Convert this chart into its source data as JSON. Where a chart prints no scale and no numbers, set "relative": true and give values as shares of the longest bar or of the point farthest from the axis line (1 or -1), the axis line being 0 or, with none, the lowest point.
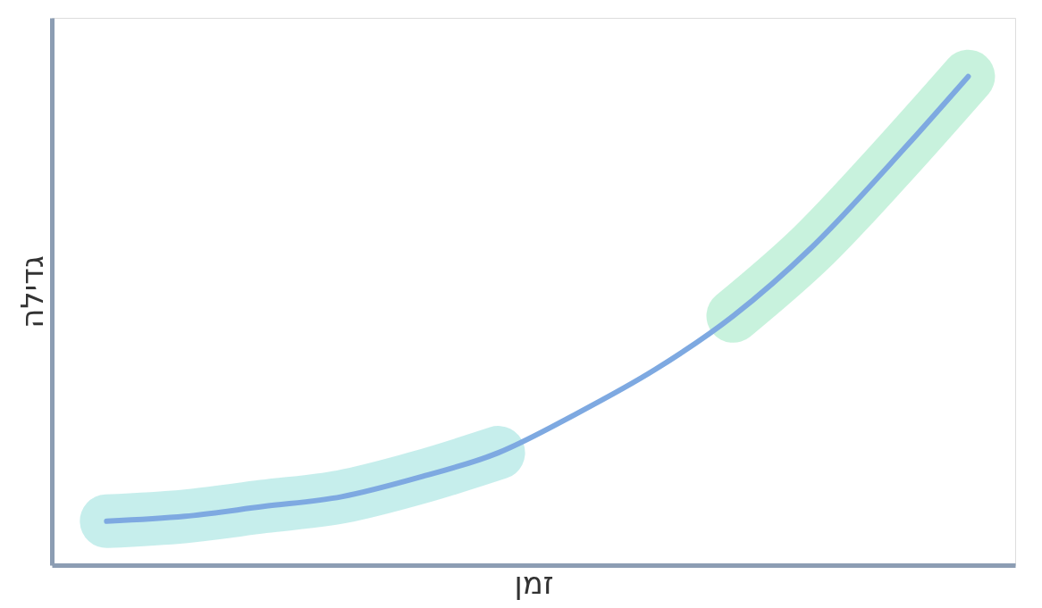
{
  "chart_data": {
    "type": "line",
    "relative": true,
    "xlabel": "זמן",
    "ylabel": "גדילה",
    "categories": [
      null,
      null,
      null,
      null,
      null,
      null,
      null,
      null,
      null,
      null,
      null,
      null
    ],
    "series": [
      {
        "color": "#b3e8e6",
        "values": [
          0.09,
          0.1,
          0.12,
          0.14,
          0.18,
          0.23,
          null,
          null,
          null,
          null,
          null,
          null
        ]
      },
      {
        "color": "#b5edd2",
        "values": [
          null,
          null,
          null,
          null,
          null,
          null,
          null,
          null,
          0.51,
          0.65,
          0.82,
          1.0
        ]
      },
      {
        "color": "#7ea9e1",
        "values": [
          0.09,
          0.1,
          0.12,
          0.14,
          0.18,
          0.23,
          0.31,
          0.4,
          0.51,
          0.65,
          0.82,
          1.0
        ]
      }
    ]
  }
}
